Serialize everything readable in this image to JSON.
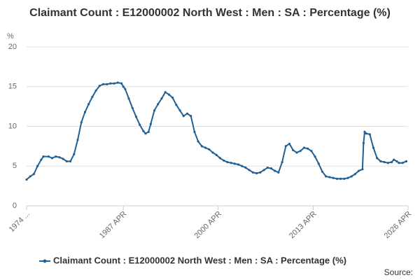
{
  "chart_data": {
    "type": "line",
    "title": "Claimant Count : E12000002 North West : Men : SA : Percentage (%)",
    "y_axis_label": "%",
    "source": "Source:",
    "x": [
      1974.0,
      1974.5,
      1975.0,
      1975.5,
      1976.0,
      1976.3,
      1977.0,
      1977.5,
      1978.0,
      1978.5,
      1979.0,
      1979.5,
      1980.0,
      1980.5,
      1981.0,
      1981.5,
      1982.0,
      1982.5,
      1983.0,
      1983.5,
      1984.0,
      1984.5,
      1985.0,
      1985.5,
      1986.0,
      1986.5,
      1987.0,
      1987.25,
      1987.5,
      1988.0,
      1988.5,
      1989.0,
      1989.5,
      1990.0,
      1990.3,
      1990.7,
      1991.0,
      1991.5,
      1992.0,
      1992.5,
      1993.0,
      1993.5,
      1994.0,
      1994.5,
      1995.0,
      1995.5,
      1996.0,
      1996.5,
      1997.0,
      1997.5,
      1998.0,
      1998.5,
      1999.0,
      1999.5,
      2000.0,
      2000.5,
      2001.0,
      2001.5,
      2002.0,
      2002.5,
      2003.0,
      2003.5,
      2004.0,
      2004.5,
      2005.0,
      2005.5,
      2006.0,
      2006.5,
      2007.0,
      2007.5,
      2008.0,
      2008.5,
      2009.0,
      2009.5,
      2010.0,
      2010.5,
      2011.0,
      2011.5,
      2012.0,
      2012.5,
      2013.0,
      2013.5,
      2014.0,
      2014.5,
      2015.0,
      2015.5,
      2016.0,
      2016.5,
      2017.0,
      2017.5,
      2018.0,
      2018.5,
      2019.0,
      2019.5,
      2020.0,
      2020.15,
      2020.3,
      2020.5,
      2021.0,
      2021.5,
      2022.0,
      2022.5,
      2023.0,
      2023.5,
      2024.0,
      2024.3,
      2024.7,
      2025.0,
      2025.5,
      2026.0
    ],
    "series": [
      {
        "name": "Claimant Count : E12000002 North West : Men : SA : Percentage (%)",
        "color": "#206095",
        "values": [
          3.3,
          3.7,
          4.0,
          5.0,
          5.8,
          6.2,
          6.2,
          6.0,
          6.2,
          6.1,
          5.9,
          5.6,
          5.6,
          6.5,
          8.3,
          10.5,
          11.8,
          12.8,
          13.7,
          14.5,
          15.1,
          15.3,
          15.3,
          15.4,
          15.4,
          15.5,
          15.4,
          15.0,
          14.7,
          13.5,
          12.3,
          11.2,
          10.2,
          9.4,
          9.1,
          9.3,
          10.3,
          12.0,
          12.8,
          13.5,
          14.3,
          14.0,
          13.6,
          12.7,
          12.0,
          11.3,
          11.6,
          11.3,
          9.3,
          8.1,
          7.5,
          7.3,
          7.1,
          6.7,
          6.4,
          6.0,
          5.7,
          5.5,
          5.4,
          5.3,
          5.2,
          5.0,
          4.8,
          4.5,
          4.2,
          4.1,
          4.2,
          4.5,
          4.8,
          4.7,
          4.4,
          4.2,
          5.5,
          7.5,
          7.8,
          7.0,
          6.7,
          6.9,
          7.3,
          7.2,
          6.9,
          6.2,
          5.3,
          4.3,
          3.7,
          3.6,
          3.5,
          3.4,
          3.4,
          3.4,
          3.5,
          3.7,
          4.0,
          4.4,
          4.6,
          7.9,
          9.3,
          9.1,
          9.0,
          7.3,
          6.0,
          5.6,
          5.5,
          5.4,
          5.5,
          5.8,
          5.6,
          5.4,
          5.4,
          5.6
        ]
      }
    ],
    "xlim": [
      1974.0,
      2026.25
    ],
    "xticks": [
      {
        "value": 1974.0,
        "label": "1974 ..."
      },
      {
        "value": 1987.25,
        "label": "1987 APR"
      },
      {
        "value": 2000.25,
        "label": "2000 APR"
      },
      {
        "value": 2013.25,
        "label": "2013 APR"
      },
      {
        "value": 2026.25,
        "label": "2026 APR"
      }
    ],
    "ylim": [
      0,
      20
    ],
    "yticks": [
      0,
      5,
      10,
      15,
      20
    ],
    "grid": true,
    "legend": "bottom"
  }
}
